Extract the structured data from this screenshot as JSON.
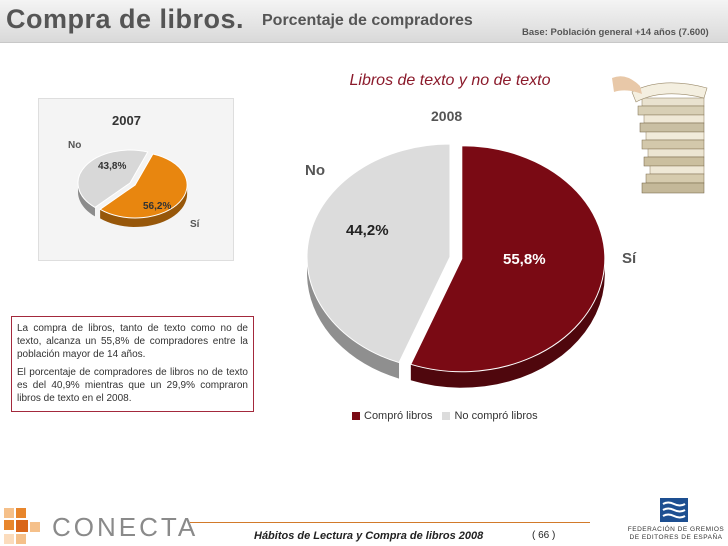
{
  "header": {
    "title_main": "Compra de libros.",
    "title_sub": "Porcentaje de compradores",
    "base_note": "Base: Población general +14 años (7.600)"
  },
  "chart_title": "Libros de texto y no de texto",
  "chart_data": [
    {
      "type": "pie",
      "title": "2007",
      "slices": [
        {
          "label": "Sí",
          "value": 56.2,
          "value_label": "56,2%",
          "color": "#e8860f"
        },
        {
          "label": "No",
          "value": 43.8,
          "value_label": "43,8%",
          "color": "#d8d8d8"
        }
      ]
    },
    {
      "type": "pie",
      "title": "2008",
      "slices": [
        {
          "label": "Sí",
          "value": 55.8,
          "value_label": "55,8%",
          "color": "#7a0a14"
        },
        {
          "label": "No",
          "value": 44.2,
          "value_label": "44,2%",
          "color": "#dcdcdc"
        }
      ],
      "legend": [
        {
          "label": "Compró libros",
          "color": "#7a0a14"
        },
        {
          "label": "No compró libros",
          "color": "#dcdcdc"
        }
      ],
      "legend_position": "bottom"
    }
  ],
  "note": {
    "p1": "La compra de libros, tanto de texto como no de texto, alcanza un 55,8% de compradores entre la población mayor de 14 años.",
    "p2": "El porcentaje de compradores de libros no de texto es del 40,9% mientras que un 29,9% compraron libros de texto en el 2008."
  },
  "footer": {
    "brand": "CONECTA",
    "report_title": "Hábitos de Lectura y Compra de libros 2008",
    "page": "( 66 )",
    "federation": "FEDERACIÓN DE GREMIOS DE EDITORES DE ESPAÑA"
  }
}
